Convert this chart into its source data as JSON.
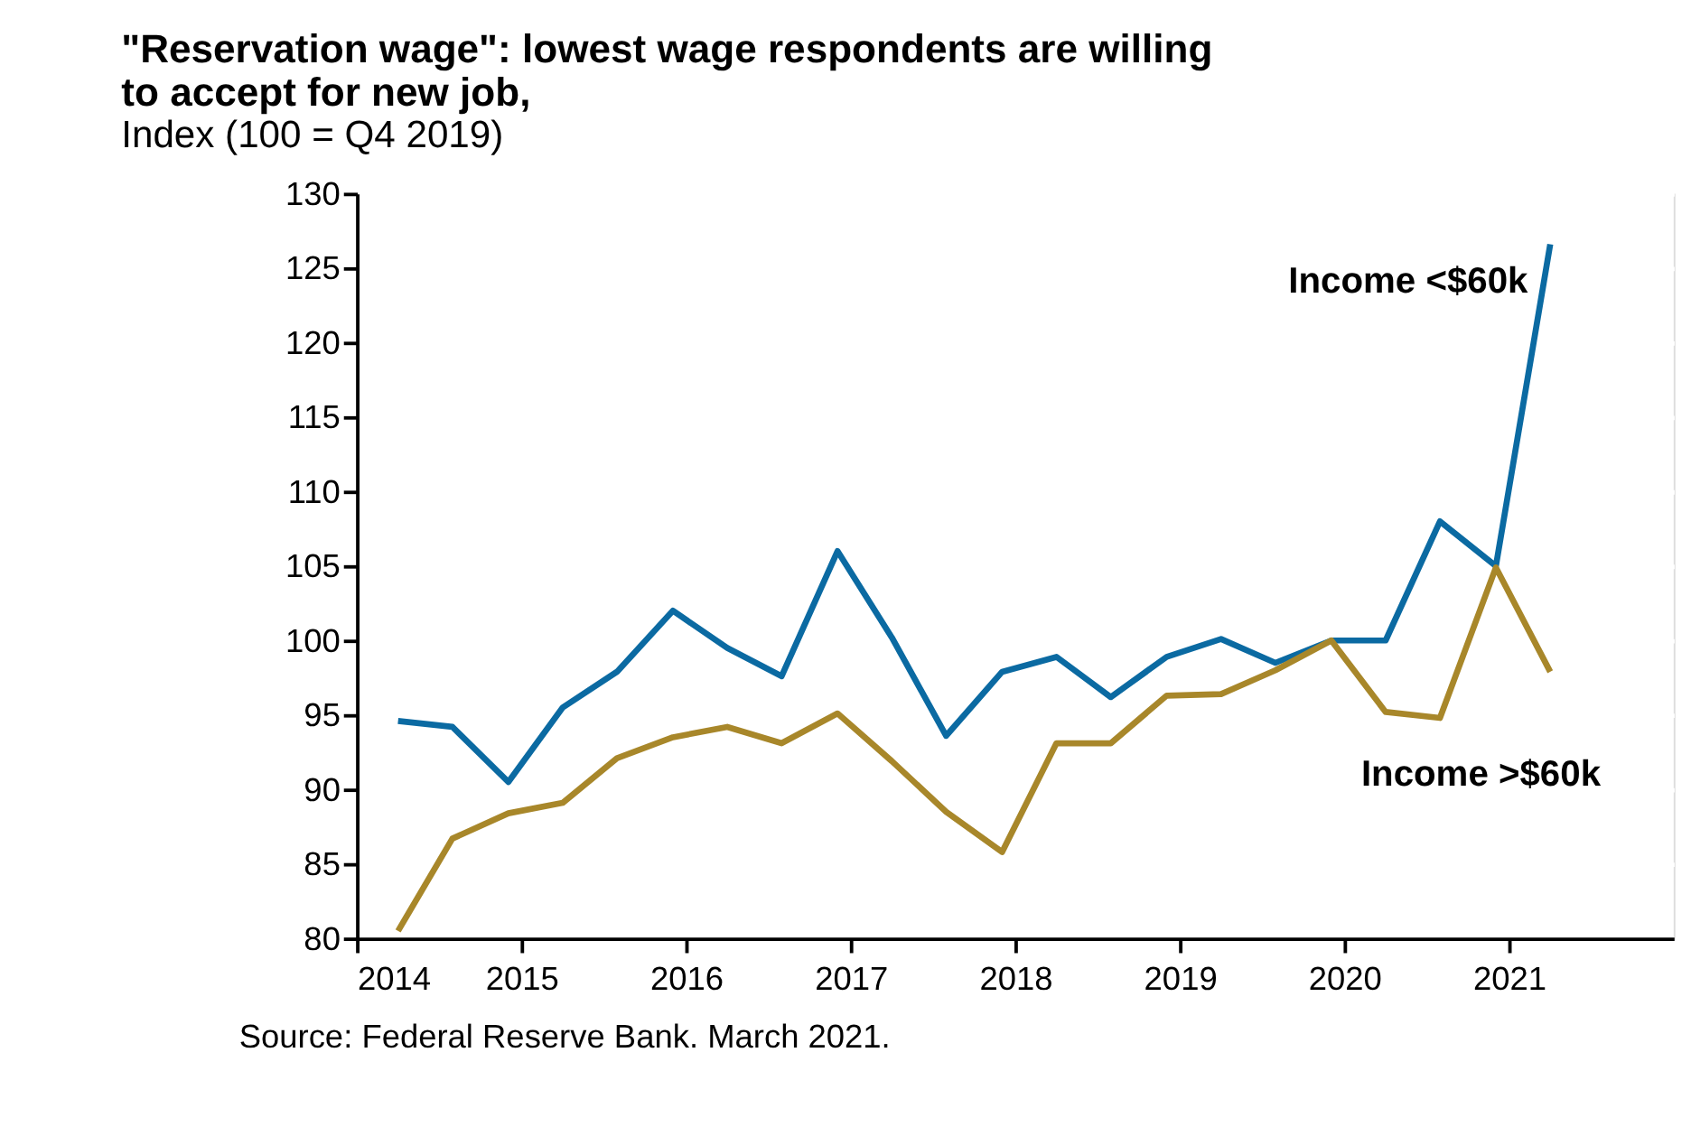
{
  "chart_data": {
    "type": "line",
    "title": "\"Reservation wage\": lowest wage respondents are willing to accept for new job,",
    "subtitle": "Index (100 = Q4 2019)",
    "x": [
      2014.25,
      2014.58,
      2014.92,
      2015.25,
      2015.58,
      2015.92,
      2016.25,
      2016.58,
      2016.92,
      2017.25,
      2017.58,
      2017.92,
      2018.25,
      2018.58,
      2018.92,
      2019.25,
      2019.58,
      2019.92,
      2020.25,
      2020.58,
      2020.92,
      2021.25
    ],
    "series": [
      {
        "name": "Income <$60k",
        "color": "#0b6aa2",
        "values": [
          94.6,
          94.2,
          90.5,
          95.5,
          97.9,
          102,
          99.5,
          97.6,
          106,
          100.2,
          93.6,
          97.9,
          98.9,
          96.2,
          98.9,
          100.1,
          98.5,
          100,
          100,
          108,
          105,
          126.6
        ]
      },
      {
        "name": "Income >$60k",
        "color": "#a8872a",
        "values": [
          80.5,
          86.7,
          88.4,
          89.1,
          92.1,
          93.5,
          94.2,
          93.1,
          95.1,
          91.9,
          88.5,
          85.8,
          93.1,
          93.1,
          96.3,
          96.4,
          98,
          100,
          95.2,
          94.8,
          104.9,
          97.9
        ]
      }
    ],
    "xlim": [
      2014,
      2022
    ],
    "xticks": [
      2014,
      2015,
      2016,
      2017,
      2018,
      2019,
      2020,
      2021
    ],
    "ylim": [
      80,
      130
    ],
    "yticks": [
      80,
      85,
      90,
      95,
      100,
      105,
      110,
      115,
      120,
      125,
      130
    ],
    "grid": "y",
    "legend": false,
    "marker": "none",
    "line_style": "solid",
    "annotations": [
      "Source: Federal Reserve Bank. March 2021."
    ]
  }
}
